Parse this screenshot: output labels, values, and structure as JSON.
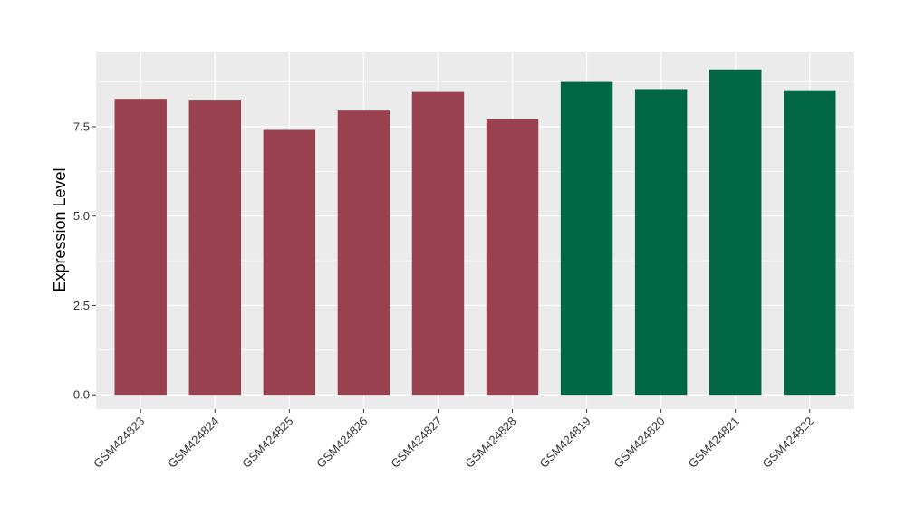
{
  "chart_data": {
    "type": "bar",
    "title": "",
    "xlabel": "",
    "ylabel": "Expression Level",
    "ylim": [
      -0.4,
      9.6
    ],
    "yticks": [
      0.0,
      2.5,
      5.0,
      7.5
    ],
    "ytick_labels": [
      "0.0",
      "2.5",
      "5.0",
      "7.5"
    ],
    "grid": true,
    "legend": "none",
    "categories": [
      "GSM424823",
      "GSM424824",
      "GSM424825",
      "GSM424826",
      "GSM424827",
      "GSM424828",
      "GSM424819",
      "GSM424820",
      "GSM424821",
      "GSM424822"
    ],
    "values": [
      8.28,
      8.23,
      7.41,
      7.95,
      8.47,
      7.71,
      8.75,
      8.55,
      9.1,
      8.52
    ],
    "bar_colors": [
      "#99414f",
      "#99414f",
      "#99414f",
      "#99414f",
      "#99414f",
      "#99414f",
      "#006644",
      "#006644",
      "#006644",
      "#006644"
    ],
    "panel_background": "#ebebeb",
    "gridline_color": "#ffffff"
  }
}
